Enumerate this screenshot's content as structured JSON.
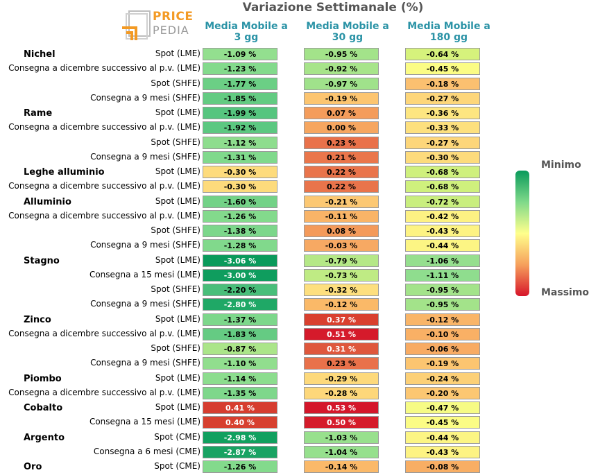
{
  "title": "Variazione Settimanale (%)",
  "logo": {
    "line1": "PRICE",
    "line2": "PEDIA"
  },
  "columns": [
    "Media Mobile a 3 gg",
    "Media Mobile a 30 gg",
    "Media Mobile a 180 gg"
  ],
  "legend": {
    "min_label": "Minimo",
    "max_label": "Massimo",
    "colors": [
      "#0a9a5b",
      "#7fd98a",
      "#ffff8c",
      "#f6a05c",
      "#d7152a"
    ]
  },
  "chart_data": {
    "type": "table",
    "title": "Variazione Settimanale (%)",
    "columns": [
      "Media Mobile a 3 gg",
      "Media Mobile a 30 gg",
      "Media Mobile a 180 gg"
    ],
    "groups": [
      {
        "name": "Nichel",
        "rows": [
          {
            "label": "Spot (LME)",
            "values": [
              "-1.09 %",
              "-0.95 %",
              "-0.64 %"
            ],
            "colors": [
              "#93df8f",
              "#a3e38a",
              "#d6f27c"
            ]
          },
          {
            "label": "Consegna a dicembre successivo al p.v. (LME)",
            "values": [
              "-1.23 %",
              "-0.92 %",
              "-0.45 %"
            ],
            "colors": [
              "#83da8c",
              "#a7e48a",
              "#fbfc85"
            ]
          },
          {
            "label": "Spot (SHFE)",
            "values": [
              "-1.77 %",
              "-0.97 %",
              "-0.18 %"
            ],
            "colors": [
              "#6bcf85",
              "#a0e28b",
              "#fbc070"
            ]
          },
          {
            "label": "Consegna a 9 mesi (SHFE)",
            "values": [
              "-1.85 %",
              "-0.19 %",
              "-0.27 %"
            ],
            "colors": [
              "#63cb82",
              "#fcc570",
              "#fdd67a"
            ]
          }
        ]
      },
      {
        "name": "Rame",
        "rows": [
          {
            "label": "Spot (LME)",
            "values": [
              "-1.99 %",
              "0.07 %",
              "-0.36 %"
            ],
            "colors": [
              "#56c57f",
              "#f49c5b",
              "#fde681"
            ]
          },
          {
            "label": "Consegna a dicembre successivo al p.v. (LME)",
            "values": [
              "-1.92 %",
              "0.00 %",
              "-0.33 %"
            ],
            "colors": [
              "#5cc881",
              "#f6a660",
              "#fde07e"
            ]
          },
          {
            "label": "Spot (SHFE)",
            "values": [
              "-1.12 %",
              "0.23 %",
              "-0.27 %"
            ],
            "colors": [
              "#8edd8e",
              "#e9714a",
              "#fdd67a"
            ]
          },
          {
            "label": "Consegna a 9 mesi (SHFE)",
            "values": [
              "-1.31 %",
              "0.21 %",
              "-0.30 %"
            ],
            "colors": [
              "#80d98c",
              "#ea764b",
              "#fddb7c"
            ]
          }
        ]
      },
      {
        "name": "Leghe alluminio",
        "rows": [
          {
            "label": "Spot (LME)",
            "values": [
              "-0.30 %",
              "0.22 %",
              "-0.68 %"
            ],
            "colors": [
              "#fddb7c",
              "#e9744b",
              "#cff07d"
            ]
          },
          {
            "label": "Consegna a dicembre successivo al p.v. (LME)",
            "values": [
              "-0.30 %",
              "0.22 %",
              "-0.68 %"
            ],
            "colors": [
              "#fddb7c",
              "#e9744b",
              "#cff07d"
            ]
          }
        ]
      },
      {
        "name": "Alluminio",
        "rows": [
          {
            "label": "Spot (LME)",
            "values": [
              "-1.60 %",
              "-0.21 %",
              "-0.72 %"
            ],
            "colors": [
              "#73d287",
              "#fcc873",
              "#c9ee7e"
            ]
          },
          {
            "label": "Consegna a dicembre successivo al p.v. (LME)",
            "values": [
              "-1.26 %",
              "-0.11 %",
              "-0.42 %"
            ],
            "colors": [
              "#83da8c",
              "#f9b467",
              "#fdf183"
            ]
          },
          {
            "label": "Spot (SHFE)",
            "values": [
              "-1.38 %",
              "0.08 %",
              "-0.43 %"
            ],
            "colors": [
              "#7cd78b",
              "#f49a5a",
              "#fdf383"
            ]
          },
          {
            "label": "Consegna a 9 mesi (SHFE)",
            "values": [
              "-1.28 %",
              "-0.03 %",
              "-0.44 %"
            ],
            "colors": [
              "#81d98c",
              "#f7a963",
              "#fcf584"
            ]
          }
        ]
      },
      {
        "name": "Stagno",
        "rows": [
          {
            "label": "Spot (LME)",
            "values": [
              "-3.06 %",
              "-0.79 %",
              "-1.06 %"
            ],
            "colors": [
              "#0a9a5b",
              "#b5e887",
              "#95df8e"
            ]
          },
          {
            "label": "Consegna a 15 mesi (LME)",
            "values": [
              "-3.00 %",
              "-0.73 %",
              "-1.11 %"
            ],
            "colors": [
              "#0f9d5e",
              "#bfeb84",
              "#8fdd8e"
            ]
          },
          {
            "label": "Spot (SHFE)",
            "values": [
              "-2.20 %",
              "-0.32 %",
              "-0.95 %"
            ],
            "colors": [
              "#49be7a",
              "#fddf7e",
              "#a3e38a"
            ]
          },
          {
            "label": "Consegna a 9 mesi (SHFE)",
            "values": [
              "-2.80 %",
              "-0.12 %",
              "-0.95 %"
            ],
            "colors": [
              "#1fa866",
              "#fab968",
              "#a3e38a"
            ]
          }
        ]
      },
      {
        "name": "Zinco",
        "rows": [
          {
            "label": "Spot (LME)",
            "values": [
              "-1.37 %",
              "0.37 %",
              "-0.12 %"
            ],
            "colors": [
              "#7dd78b",
              "#d9402f",
              "#f9b568"
            ]
          },
          {
            "label": "Consegna a dicembre successivo al p.v. (LME)",
            "values": [
              "-1.83 %",
              "0.51 %",
              "-0.10 %"
            ],
            "colors": [
              "#65cb83",
              "#d51a2b",
              "#f9b065"
            ]
          },
          {
            "label": "Spot (SHFE)",
            "values": [
              "-0.87 %",
              "0.31 %",
              "-0.06 %"
            ],
            "colors": [
              "#abe589",
              "#df573c",
              "#f8ab63"
            ]
          },
          {
            "label": "Consegna a 9 mesi (SHFE)",
            "values": [
              "-1.10 %",
              "0.23 %",
              "-0.19 %"
            ],
            "colors": [
              "#91de8e",
              "#e9714a",
              "#fcc570"
            ]
          }
        ]
      },
      {
        "name": "Piombo",
        "rows": [
          {
            "label": "Spot (LME)",
            "values": [
              "-1.14 %",
              "-0.29 %",
              "-0.24 %"
            ],
            "colors": [
              "#8cdd8e",
              "#fdd97b",
              "#fcd077"
            ]
          },
          {
            "label": "Consegna a dicembre successivo al p.v. (LME)",
            "values": [
              "-1.35 %",
              "-0.28 %",
              "-0.20 %"
            ],
            "colors": [
              "#7ed78b",
              "#fdd77a",
              "#fcc772"
            ]
          }
        ]
      },
      {
        "name": "Cobalto",
        "rows": [
          {
            "label": "Spot (LME)",
            "values": [
              "0.41 %",
              "0.53 %",
              "-0.47 %"
            ],
            "colors": [
              "#d63d2f",
              "#d4162a",
              "#f6fb85"
            ]
          },
          {
            "label": "Consegna a 15 mesi (LME)",
            "values": [
              "0.40 %",
              "0.50 %",
              "-0.45 %"
            ],
            "colors": [
              "#d7402f",
              "#d51c2b",
              "#fbfc85"
            ]
          }
        ]
      },
      {
        "name": "Argento",
        "rows": [
          {
            "label": "Spot (CME)",
            "values": [
              "-2.98 %",
              "-1.03 %",
              "-0.44 %"
            ],
            "colors": [
              "#11a05f",
              "#98e08d",
              "#fcf584"
            ]
          },
          {
            "label": "Consegna a 6 mesi (CME)",
            "values": [
              "-2.87 %",
              "-1.04 %",
              "-0.43 %"
            ],
            "colors": [
              "#19a363",
              "#96e08d",
              "#fdf383"
            ]
          }
        ]
      },
      {
        "name": "Oro",
        "rows": [
          {
            "label": "Spot (CME)",
            "values": [
              "-1.26 %",
              "-0.14 %",
              "-0.08 %"
            ],
            "colors": [
              "#83da8c",
              "#fab969",
              "#f8ae64"
            ]
          }
        ]
      }
    ]
  }
}
